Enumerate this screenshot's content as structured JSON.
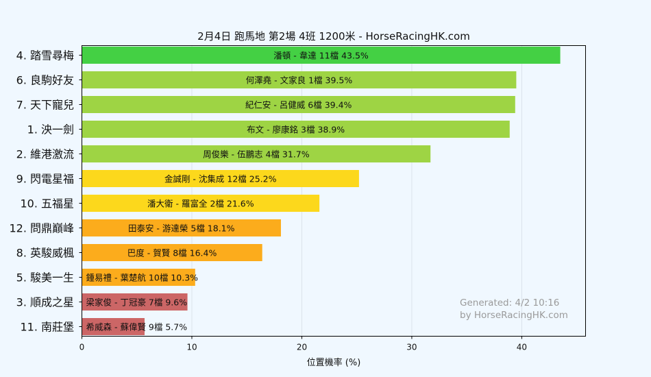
{
  "chart_data": {
    "type": "bar",
    "orientation": "horizontal",
    "title": "2月4日  跑馬地  第2場  4班  1200米 - HorseRacingHK.com",
    "xlabel": "位置機率 (%)",
    "xlim": [
      0,
      45.8
    ],
    "xticks": [
      0,
      10,
      20,
      30,
      40
    ],
    "grid": "vertical",
    "bars": [
      {
        "horse": "4. 踏雪尋梅",
        "label": "潘頓 - 韋達 11檔  43.5%",
        "value": 43.5,
        "color": "#44d044"
      },
      {
        "horse": "6. 良駒好友",
        "label": "何澤堯 - 文家良 1檔  39.5%",
        "value": 39.5,
        "color": "#9ed444"
      },
      {
        "horse": "7. 天下寵兒",
        "label": "紀仁安 - 呂健威 6檔  39.4%",
        "value": 39.4,
        "color": "#9ed444"
      },
      {
        "horse": "1. 泱一劍",
        "label": "布文 - 廖康銘 3檔  38.9%",
        "value": 38.9,
        "color": "#9ed444"
      },
      {
        "horse": "2. 維港激流",
        "label": "周俊樂 - 伍鵬志 4檔  31.7%",
        "value": 31.7,
        "color": "#9ed444"
      },
      {
        "horse": "9. 閃電星福",
        "label": "金誠剛 - 沈集成 12檔  25.2%",
        "value": 25.2,
        "color": "#fcd81c"
      },
      {
        "horse": "10. 五福星",
        "label": "潘大衛 - 羅富全 2檔  21.6%",
        "value": 21.6,
        "color": "#fcd81c"
      },
      {
        "horse": "12. 問鼎巔峰",
        "label": "田泰安 - 游達榮 5檔  18.1%",
        "value": 18.1,
        "color": "#fcac1c"
      },
      {
        "horse": "8. 英駿威楓",
        "label": "巴度 - 賀賢 8檔  16.4%",
        "value": 16.4,
        "color": "#fcac1c"
      },
      {
        "horse": "5. 駿美一生",
        "label": "鍾易禮 - 葉楚航 10檔  10.3%",
        "value": 10.3,
        "color": "#fcac1c"
      },
      {
        "horse": "3. 順成之星",
        "label": "梁家俊 - 丁冠豪 7檔  9.6%",
        "value": 9.6,
        "color": "#cc6666"
      },
      {
        "horse": "11. 南莊堡",
        "label": "希威森 - 蘇偉賢 9檔  5.7%",
        "value": 5.7,
        "color": "#cc6666"
      }
    ]
  },
  "watermark": {
    "line1": "Generated: 4/2 10:16",
    "line2": "by HorseRacingHK.com"
  }
}
